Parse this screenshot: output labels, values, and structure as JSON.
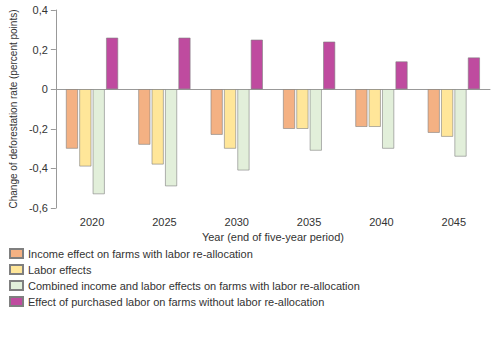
{
  "chart_data": {
    "type": "bar",
    "x_label": "Year (end of five-year period)",
    "y_label": "Change of deforestation rate (percent points)",
    "categories": [
      "2020",
      "2025",
      "2030",
      "2035",
      "2040",
      "2045"
    ],
    "series": [
      {
        "name": "Income effect on farms with labor re-allocation",
        "color": "#f4b183",
        "values": [
          -0.3,
          -0.28,
          -0.23,
          -0.2,
          -0.19,
          -0.22
        ]
      },
      {
        "name": "Labor effects",
        "color": "#ffe699",
        "values": [
          -0.39,
          -0.38,
          -0.3,
          -0.2,
          -0.19,
          -0.24
        ]
      },
      {
        "name": "Combined income and labor effects on farms with labor re-allocation",
        "color": "#e2efda",
        "values": [
          -0.53,
          -0.49,
          -0.41,
          -0.31,
          -0.3,
          -0.34
        ]
      },
      {
        "name": "Effect of purchased labor on farms without labor re-allocation",
        "color": "#bf4b9f",
        "values": [
          0.26,
          0.26,
          0.25,
          0.24,
          0.14,
          0.16
        ]
      }
    ],
    "ylim": [
      -0.6,
      0.4
    ],
    "yticks": [
      {
        "value": -0.6,
        "label": "-0,6"
      },
      {
        "value": -0.4,
        "label": "-0,4"
      },
      {
        "value": -0.2,
        "label": "-0,2"
      },
      0,
      {
        "value": 0.2,
        "label": "0,2"
      },
      {
        "value": 0.4,
        "label": "0,4"
      }
    ],
    "grid": false,
    "legend": "bottom"
  }
}
